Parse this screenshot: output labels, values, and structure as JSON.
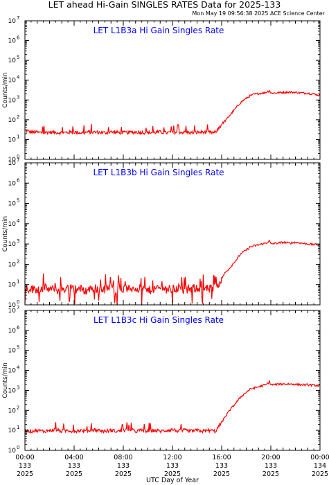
{
  "header": {
    "title": "LET ahead Hi-Gain SINGLES RATES Data for 2025-133",
    "subtitle": "Mon May 19 09:56:38 2025 ACE Science Center"
  },
  "colors": {
    "line": "#ff0000",
    "panel_title": "#0000ff",
    "axis": "#000000"
  },
  "chart_data": [
    {
      "type": "line",
      "title": "LET L1B3a Hi Gain Singles Rate",
      "ylabel": "Counts/min",
      "xlabel": "UTC Day of Year",
      "yscale": "log",
      "ylim": [
        1,
        10000000
      ],
      "xlim": [
        0,
        24
      ],
      "x": [
        0,
        0.5,
        1,
        1.5,
        2,
        2.5,
        3,
        3.5,
        4,
        4.5,
        5,
        5.5,
        6,
        6.5,
        7,
        7.5,
        8,
        8.5,
        9,
        9.5,
        10,
        10.5,
        11,
        11.5,
        12,
        12.5,
        13,
        13.5,
        14,
        14.5,
        15,
        15.5,
        16,
        16.3,
        16.6,
        17,
        17.3,
        17.6,
        18,
        18.3,
        18.6,
        19,
        19.3,
        19.6,
        19.9,
        20,
        20.5,
        21,
        21.5,
        22,
        22.5,
        23,
        23.5,
        24
      ],
      "values": [
        30,
        24,
        23,
        22,
        24,
        23,
        22,
        23,
        24,
        22,
        23,
        24,
        23,
        22,
        24,
        23,
        22,
        23,
        24,
        23,
        22,
        23,
        24,
        22,
        23,
        24,
        23,
        22,
        23,
        24,
        23,
        22,
        60,
        90,
        150,
        300,
        500,
        800,
        1200,
        1600,
        1900,
        2100,
        2200,
        2400,
        3000,
        2200,
        2300,
        2400,
        2500,
        2400,
        2300,
        2200,
        2000,
        1700
      ]
    },
    {
      "type": "line",
      "title": "LET L1B3b Hi Gain Singles Rate",
      "ylabel": "Counts/min",
      "xlabel": "UTC Day of Year",
      "yscale": "log",
      "ylim": [
        1,
        10000000
      ],
      "xlim": [
        0,
        24
      ],
      "x": [
        0,
        0.5,
        1,
        1.5,
        2,
        2.5,
        3,
        3.5,
        4,
        4.5,
        5,
        5.5,
        6,
        6.5,
        7,
        7.5,
        8,
        8.5,
        9,
        9.5,
        10,
        10.5,
        11,
        11.5,
        12,
        12.5,
        13,
        13.5,
        14,
        14.5,
        15,
        15.5,
        16,
        16.3,
        16.6,
        17,
        17.3,
        17.6,
        18,
        18.3,
        18.6,
        19,
        19.3,
        19.6,
        19.9,
        20,
        20.5,
        21,
        21.5,
        22,
        22.5,
        23,
        23.5,
        24
      ],
      "values": [
        7,
        6,
        6,
        7,
        6,
        5,
        6,
        7,
        6,
        6,
        5,
        7,
        6,
        6,
        7,
        5,
        6,
        6,
        7,
        6,
        5,
        6,
        7,
        6,
        6,
        7,
        5,
        6,
        7,
        6,
        6,
        7,
        20,
        40,
        60,
        120,
        200,
        350,
        500,
        700,
        800,
        900,
        1000,
        1100,
        1400,
        1000,
        1100,
        1200,
        1100,
        1200,
        1100,
        1000,
        950,
        900
      ]
    },
    {
      "type": "line",
      "title": "LET L1B3c Hi Gain Singles Rate",
      "ylabel": "Counts/min",
      "xlabel": "UTC Day of Year",
      "yscale": "log",
      "ylim": [
        1,
        10000000
      ],
      "xlim": [
        0,
        24
      ],
      "x": [
        0,
        0.5,
        1,
        1.5,
        2,
        2.5,
        3,
        3.5,
        4,
        4.5,
        5,
        5.5,
        6,
        6.5,
        7,
        7.5,
        8,
        8.5,
        9,
        9.5,
        10,
        10.5,
        11,
        11.5,
        12,
        12.5,
        13,
        13.5,
        14,
        14.5,
        15,
        15.5,
        16,
        16.3,
        16.6,
        17,
        17.3,
        17.6,
        18,
        18.3,
        18.6,
        19,
        19.3,
        19.6,
        19.9,
        20,
        20.5,
        21,
        21.5,
        22,
        22.5,
        23,
        23.5,
        24
      ],
      "values": [
        10,
        9,
        10,
        9,
        10,
        11,
        9,
        10,
        9,
        10,
        9,
        11,
        10,
        9,
        10,
        9,
        10,
        11,
        9,
        10,
        9,
        10,
        9,
        10,
        11,
        9,
        10,
        9,
        10,
        9,
        10,
        9,
        25,
        50,
        90,
        180,
        300,
        500,
        800,
        1100,
        1300,
        1500,
        1700,
        1900,
        2700,
        1900,
        2000,
        2100,
        2100,
        2000,
        1900,
        1900,
        1800,
        1700
      ]
    }
  ],
  "axes": {
    "y_ticks": [
      {
        "value": 1,
        "label": "10",
        "exp": "0"
      },
      {
        "value": 10,
        "label": "10",
        "exp": "1"
      },
      {
        "value": 100,
        "label": "10",
        "exp": "2"
      },
      {
        "value": 1000,
        "label": "10",
        "exp": "3"
      },
      {
        "value": 10000,
        "label": "10",
        "exp": "4"
      },
      {
        "value": 100000,
        "label": "10",
        "exp": "5"
      },
      {
        "value": 1000000,
        "label": "10",
        "exp": "6"
      },
      {
        "value": 10000000,
        "label": "10",
        "exp": "7"
      }
    ],
    "x_ticks": [
      {
        "value": 0,
        "time": "00:00",
        "doy": "133",
        "year": "2025"
      },
      {
        "value": 4,
        "time": "04:00",
        "doy": "133",
        "year": "2025"
      },
      {
        "value": 8,
        "time": "08:00",
        "doy": "133",
        "year": "2025"
      },
      {
        "value": 12,
        "time": "12:00",
        "doy": "133",
        "year": "2025"
      },
      {
        "value": 16,
        "time": "16:00",
        "doy": "133",
        "year": "2025"
      },
      {
        "value": 20,
        "time": "20:00",
        "doy": "133",
        "year": "2025"
      },
      {
        "value": 24,
        "time": "00:00",
        "doy": "134",
        "year": "2025"
      }
    ],
    "x_minor_step": 0.5
  }
}
